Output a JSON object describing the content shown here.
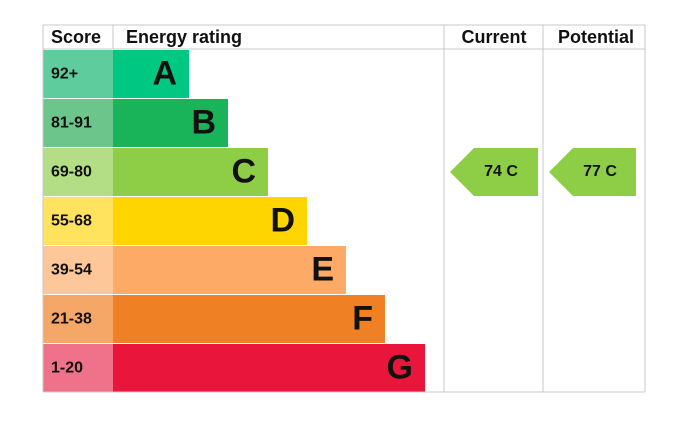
{
  "header": {
    "score": "Score",
    "energy_rating": "Energy rating",
    "current": "Current",
    "potential": "Potential"
  },
  "rows": [
    {
      "score": "92+",
      "band": "A"
    },
    {
      "score": "81-91",
      "band": "B"
    },
    {
      "score": "69-80",
      "band": "C"
    },
    {
      "score": "55-68",
      "band": "D"
    },
    {
      "score": "39-54",
      "band": "E"
    },
    {
      "score": "21-38",
      "band": "F"
    },
    {
      "score": "1-20",
      "band": "G"
    }
  ],
  "current": "74 C",
  "potential": "77 C"
}
